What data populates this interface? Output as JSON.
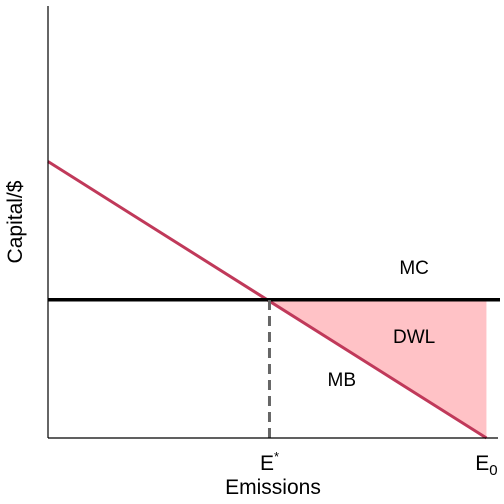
{
  "chart_data": {
    "type": "line",
    "title": "",
    "xlabel": "Emissions",
    "ylabel": "Capital/$",
    "xlim": [
      0,
      1
    ],
    "ylim": [
      0,
      1
    ],
    "x_ticks": [
      {
        "value": 0.49,
        "label": "E",
        "sup": "*"
      },
      {
        "value": 0.97,
        "label": "E",
        "sub": "0"
      }
    ],
    "series": [
      {
        "name": "MB",
        "points": [
          [
            0,
            0.64
          ],
          [
            0.97,
            0
          ]
        ],
        "color": "#c0395a"
      },
      {
        "name": "MC",
        "points": [
          [
            0,
            0.32
          ],
          [
            1,
            0.32
          ]
        ],
        "color": "#000000"
      }
    ],
    "reference_lines": [
      {
        "type": "vertical",
        "x": 0.49,
        "y_from": 0,
        "y_to": 0.32,
        "style": "dashed",
        "color": "#666666"
      }
    ],
    "shaded_regions": [
      {
        "label": "DWL",
        "polygon": [
          [
            0.49,
            0.32
          ],
          [
            0.97,
            0.32
          ],
          [
            0.97,
            0
          ]
        ],
        "color": "#ffc2c6"
      }
    ],
    "annotations": [
      {
        "text": "MC",
        "x": 0.81,
        "y": 0.38
      },
      {
        "text": "DWL",
        "x": 0.81,
        "y": 0.22
      },
      {
        "text": "MB",
        "x": 0.65,
        "y": 0.12
      }
    ],
    "grid": false,
    "legend": "none"
  }
}
